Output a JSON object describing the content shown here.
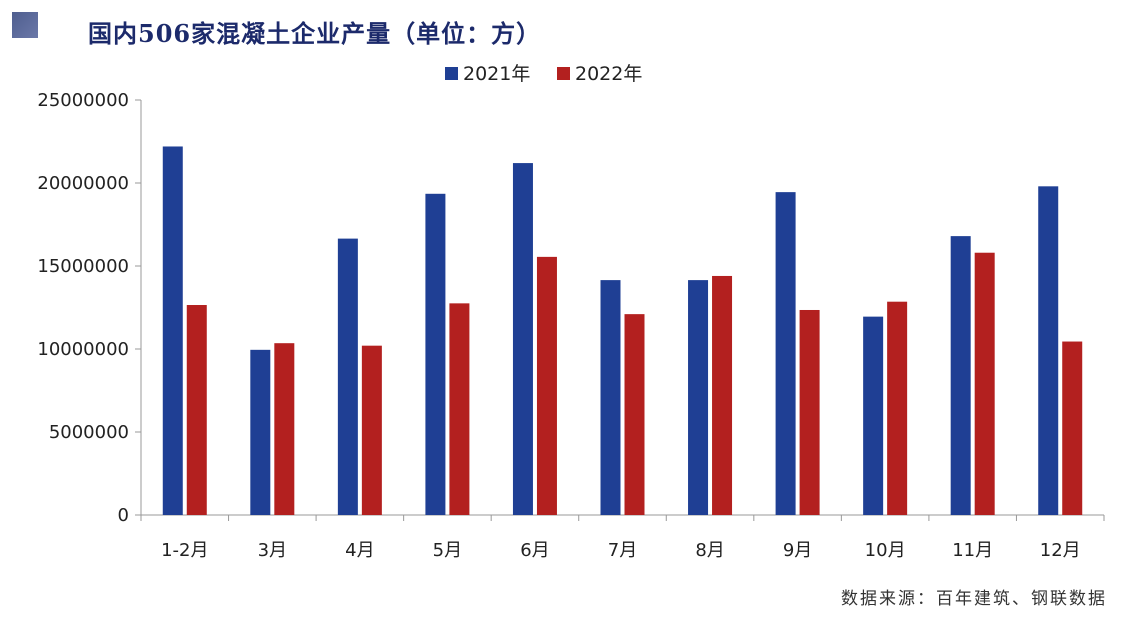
{
  "title": "国内506家混凝土企业产量（单位：方）",
  "source": "数据来源：百年建筑、钢联数据",
  "chart_data": {
    "type": "bar",
    "categories": [
      "1-2月",
      "3月",
      "4月",
      "5月",
      "6月",
      "7月",
      "8月",
      "9月",
      "10月",
      "11月",
      "12月"
    ],
    "series": [
      {
        "name": "2021年",
        "color": "#1f3f94",
        "values": [
          22200000,
          9950000,
          16650000,
          19350000,
          21200000,
          14150000,
          14150000,
          19450000,
          11950000,
          16800000,
          19800000
        ]
      },
      {
        "name": "2022年",
        "color": "#b3201f",
        "values": [
          12650000,
          10350000,
          10200000,
          12750000,
          15550000,
          12100000,
          14400000,
          12350000,
          12850000,
          15800000,
          10450000
        ]
      }
    ],
    "y_ticks": [
      "0",
      "5000000",
      "10000000",
      "15000000",
      "20000000",
      "25000000"
    ],
    "ylim": [
      0,
      25000000
    ],
    "legend_position": "top-center",
    "grid": false
  }
}
